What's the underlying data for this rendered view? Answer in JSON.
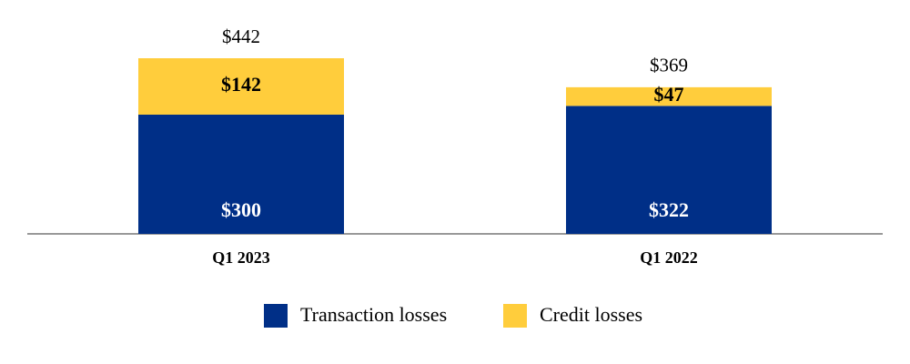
{
  "chart_data": {
    "type": "stacked_bar",
    "categories": [
      "Q1 2023",
      "Q1 2022"
    ],
    "series": [
      {
        "name": "Transaction losses",
        "color": "#002f87",
        "values": [
          300,
          322
        ],
        "value_labels": [
          "$300",
          "$322"
        ],
        "label_color": "#ffffff"
      },
      {
        "name": "Credit losses",
        "color": "#ffcd3c",
        "values": [
          142,
          47
        ],
        "value_labels": [
          "$142",
          "$47"
        ],
        "label_color": "#000000"
      }
    ],
    "totals": [
      442,
      369
    ],
    "total_labels": [
      "$442",
      "$369"
    ]
  }
}
